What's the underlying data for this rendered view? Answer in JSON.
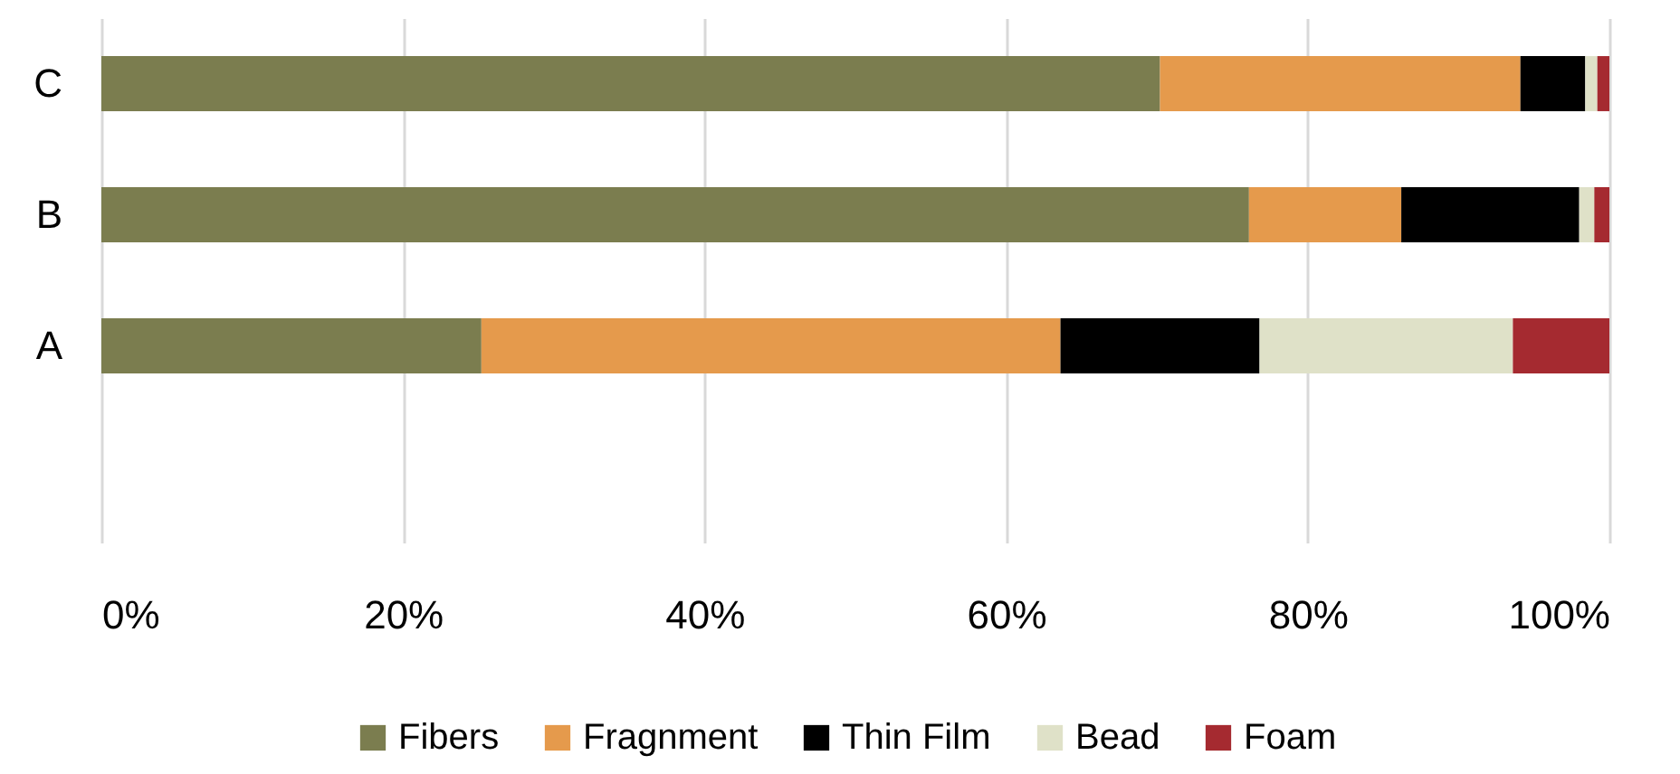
{
  "chart_data": {
    "type": "bar",
    "orientation": "horizontal",
    "stacked": true,
    "categories": [
      "C",
      "B",
      "A",
      null
    ],
    "series": [
      {
        "name": "Fibers",
        "color": "#7b7d4f",
        "values": [
          70.2,
          76.1,
          25.2,
          null
        ]
      },
      {
        "name": "Fragnment",
        "color": "#e59a4c",
        "values": [
          23.9,
          10.1,
          38.4,
          null
        ]
      },
      {
        "name": "Thin Film",
        "color": "#000000",
        "values": [
          4.3,
          11.8,
          13.2,
          null
        ]
      },
      {
        "name": "Bead",
        "color": "#dfe1c8",
        "values": [
          0.8,
          1.0,
          16.8,
          null
        ]
      },
      {
        "name": "Foam",
        "color": "#a52a30",
        "values": [
          0.8,
          1.0,
          6.4,
          null
        ]
      }
    ],
    "xlim": [
      0,
      100
    ],
    "xticks": [
      {
        "value": 0,
        "label": "0%"
      },
      {
        "value": 20,
        "label": "20%"
      },
      {
        "value": 40,
        "label": "40%"
      },
      {
        "value": 60,
        "label": "60%"
      },
      {
        "value": 80,
        "label": "80%"
      },
      {
        "value": 100,
        "label": "100%"
      }
    ],
    "grid": "x",
    "legend": "bottom"
  }
}
